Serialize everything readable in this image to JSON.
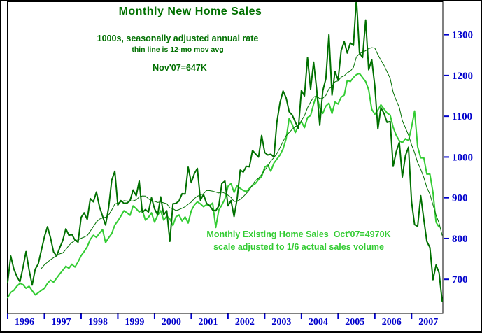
{
  "frame": {
    "background": "#ffffff",
    "border_color": "#000000"
  },
  "colors": {
    "dark_green": "#007000",
    "bright_green": "#33cc33",
    "axis_blue": "#0000cc",
    "frame_black": "#000000"
  },
  "texts": {
    "title": "Monthly New Home Sales",
    "subtitle": "1000s, seasonally adjusted annual rate",
    "subtitle2": "thin line is 12-mo mov avg",
    "new_home_annotation": "Nov'07=647K",
    "existing_annotation_1": "Monthly Existing Home Sales  Oct'07=4970K",
    "existing_annotation_2": "scale adjusted to 1/6 actual sales volume"
  },
  "chart_data": {
    "type": "line",
    "title": "Monthly New Home Sales",
    "subtitle": "1000s, seasonally adjusted annual rate",
    "x_unit": "month",
    "x_range": [
      "1996-01",
      "2007-11"
    ],
    "x_tick_labels": [
      "1996",
      "1997",
      "1998",
      "1999",
      "2000",
      "2001",
      "2002",
      "2003",
      "2004",
      "2005",
      "2006",
      "2007"
    ],
    "y_ticks": [
      700,
      800,
      900,
      1000,
      1100,
      1200,
      1300
    ],
    "ylim": [
      618,
      1380
    ],
    "grid": false,
    "legend_position": "none",
    "annotations": [
      "Nov'07=647K",
      "Monthly Existing Home Sales Oct'07=4970K",
      "scale adjusted to 1/6 actual sales volume"
    ],
    "series": [
      {
        "name": "Monthly New Home Sales (1000s, SAAR)",
        "color": "#007000",
        "width": 2,
        "start": "1996-01",
        "values": [
          693,
          757,
          726,
          707,
          694,
          729,
          768,
          723,
          686,
          725,
          738,
          771,
          804,
          829,
          802,
          767,
          757,
          777,
          795,
          824,
          808,
          810,
          796,
          791,
          852,
          863,
          847,
          898,
          890,
          914,
          878,
          855,
          833,
          876,
          943,
          965,
          882,
          893,
          886,
          887,
          893,
          919,
          905,
          941,
          864,
          871,
          865,
          900,
          873,
          858,
          902,
          858,
          868,
          793,
          885,
          886,
          892,
          910,
          909,
          975,
          937,
          959,
          972,
          894,
          908,
          886,
          881,
          870,
          868,
          880,
          935,
          941,
          880,
          893,
          854,
          898,
          968,
          963,
          977,
          976,
          1016,
          1008,
          1000,
          1053,
          1011,
          1005,
          1007,
          1000,
          1086,
          1133,
          1162,
          1145,
          1111,
          1103,
          1086,
          1070,
          1163,
          1150,
          1244,
          1166,
          1233,
          1165,
          1078,
          1162,
          1192,
          1300,
          1152,
          1210,
          1189,
          1261,
          1283,
          1255,
          1280,
          1274,
          1389,
          1255,
          1244,
          1336,
          1214,
          1239,
          1174,
          1069,
          1121,
          1107,
          1085,
          1087,
          977,
          1013,
          1036,
          951,
          1003,
          1024,
          890,
          834,
          830,
          905,
          847,
          793,
          778,
          699,
          735,
          716,
          647
        ]
      },
      {
        "name": "Monthly Existing Home Sales, scale adjusted to 1/6 actual sales volume",
        "color": "#33cc33",
        "width": 2,
        "start": "1996-01",
        "values": [
          655,
          668,
          673,
          683,
          690,
          687,
          678,
          683,
          672,
          662,
          667,
          673,
          678,
          690,
          698,
          693,
          703,
          713,
          722,
          732,
          727,
          737,
          730,
          743,
          758,
          768,
          780,
          798,
          808,
          803,
          813,
          822,
          790,
          802,
          812,
          833,
          843,
          855,
          868,
          863,
          857,
          880,
          873,
          865,
          870,
          845,
          852,
          863,
          840,
          857,
          868,
          845,
          855,
          848,
          832,
          853,
          858,
          843,
          853,
          838,
          868,
          882,
          890,
          885,
          878,
          883,
          880,
          887,
          827,
          870,
          882,
          897,
          928,
          935,
          913,
          930,
          923,
          918,
          915,
          923,
          930,
          935,
          945,
          952,
          975,
          980,
          965,
          985,
          995,
          1005,
          1020,
          1045,
          1095,
          1080,
          1060,
          1077,
          1087,
          1072,
          1097,
          1102,
          1130,
          1153,
          1120,
          1107,
          1125,
          1132,
          1107,
          1135,
          1130,
          1147,
          1152,
          1188,
          1185,
          1195,
          1202,
          1205,
          1195,
          1185,
          1165,
          1117,
          1105,
          1115,
          1128,
          1118,
          1108,
          1103,
          1073,
          1053,
          1040,
          1035,
          1045,
          1040,
          1073,
          1113,
          1025,
          998,
          998,
          958,
          958,
          913,
          840,
          828
        ]
      },
      {
        "name": "12-mo moving avg (thin line)",
        "color": "#007000",
        "width": 1,
        "derived_from": "Monthly New Home Sales (1000s, SAAR)",
        "derivation": "trailing 12-month average"
      }
    ]
  }
}
